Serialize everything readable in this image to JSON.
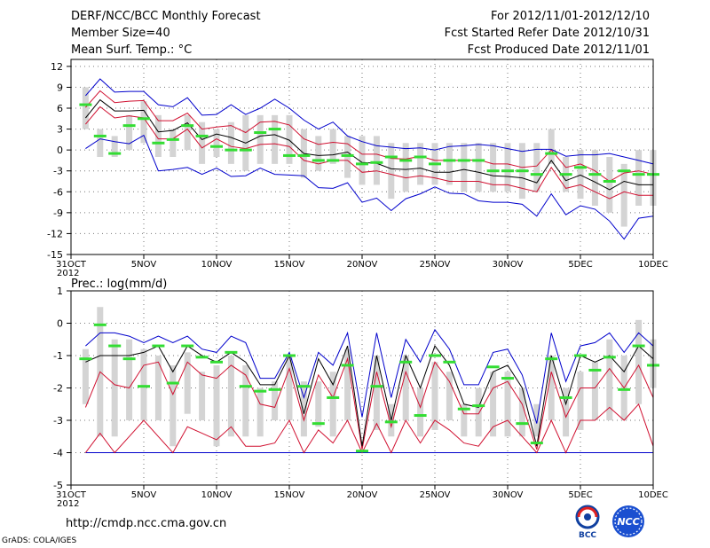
{
  "header": {
    "title": "DERF/NCC/BCC Monthly Forecast",
    "member_size": "Member Size=40",
    "variable": "Mean Surf. Temp.: °C",
    "period": "For 2012/11/01-2012/12/10",
    "started": "Fcst Started Refer Date 2012/10/31",
    "produced": "Fcst Produced Date 2012/11/01"
  },
  "footer": {
    "url": "http://cmdp.ncc.cma.gov.cn",
    "credit": "GrADS: COLA/IGES",
    "logo_left_text": "BCC",
    "logo_right_text": "NCC"
  },
  "colors": {
    "ensemble_mean": "#000000",
    "spread_inner": "#d01030",
    "spread_outer": "#0000cc",
    "box": "#d4d4d4",
    "climatology": "#33dd33"
  },
  "chart_data": [
    {
      "type": "line",
      "id": "temperature",
      "title": "Mean Surf. Temp.: °C",
      "xlabel": "",
      "ylabel": "°C",
      "x_tick_labels": [
        "31OCT",
        "5NOV",
        "10NOV",
        "15NOV",
        "20NOV",
        "25NOV",
        "30NOV",
        "5DEC",
        "10DEC"
      ],
      "x_year": "2012",
      "x_tick_days": [
        0,
        5,
        10,
        15,
        20,
        25,
        30,
        35,
        40
      ],
      "xlim": [
        0,
        40
      ],
      "ylim": [
        -15,
        13
      ],
      "y_ticks": [
        12,
        9,
        6,
        3,
        0,
        -3,
        -6,
        -9,
        -12,
        -15
      ],
      "grid": true,
      "days": [
        1,
        2,
        3,
        4,
        5,
        6,
        7,
        8,
        9,
        10,
        11,
        12,
        13,
        14,
        15,
        16,
        17,
        18,
        19,
        20,
        21,
        22,
        23,
        24,
        25,
        26,
        27,
        28,
        29,
        30,
        31,
        32,
        33,
        34,
        35,
        36,
        37,
        38,
        39,
        40
      ],
      "series": [
        {
          "name": "max",
          "values": [
            7.8,
            10.2,
            8.3,
            8.4,
            8.4,
            6.5,
            6.2,
            7.5,
            5.0,
            5.1,
            6.5,
            5.1,
            6.0,
            7.3,
            6.0,
            4.3,
            3.0,
            4.0,
            2.0,
            1.2,
            0.6,
            0.4,
            0.2,
            0.3,
            0.0,
            0.5,
            0.6,
            0.8,
            0.6,
            0.2,
            -0.2,
            0.1,
            0.1,
            -0.9,
            -0.7,
            -0.7,
            -0.5,
            -1.0,
            -1.5,
            -2.0
          ]
        },
        {
          "name": "upper",
          "values": [
            6.1,
            8.5,
            6.8,
            7.0,
            7.1,
            4.2,
            4.2,
            5.3,
            3.0,
            3.3,
            3.5,
            2.5,
            4.0,
            4.1,
            3.6,
            1.6,
            0.8,
            1.1,
            0.9,
            -0.6,
            -0.6,
            -1.2,
            -1.3,
            -0.9,
            -1.5,
            -1.5,
            -1.5,
            -1.4,
            -2.0,
            -2.0,
            -2.5,
            -2.3,
            0.0,
            -2.5,
            -2.0,
            -3.0,
            -4.5,
            -3.3,
            -3.0,
            -3.5
          ]
        },
        {
          "name": "mean",
          "values": [
            4.6,
            7.2,
            5.6,
            5.6,
            5.7,
            2.6,
            2.8,
            3.9,
            1.5,
            2.3,
            1.8,
            1.0,
            2.0,
            2.2,
            1.4,
            -0.5,
            -0.8,
            -0.7,
            -0.3,
            -1.8,
            -1.9,
            -2.7,
            -2.8,
            -2.6,
            -3.2,
            -3.2,
            -2.8,
            -3.2,
            -3.7,
            -3.8,
            -4.0,
            -4.7,
            -1.5,
            -4.4,
            -3.6,
            -4.6,
            -5.7,
            -4.5,
            -5.0,
            -5.0
          ]
        },
        {
          "name": "lower",
          "values": [
            3.7,
            6.2,
            4.6,
            4.9,
            4.6,
            1.6,
            1.6,
            3.0,
            0.3,
            1.6,
            0.5,
            0.2,
            0.8,
            0.9,
            0.5,
            -1.5,
            -2.0,
            -1.5,
            -1.5,
            -3.2,
            -3.0,
            -3.5,
            -4.0,
            -3.7,
            -4.0,
            -4.5,
            -4.5,
            -4.5,
            -5.0,
            -5.0,
            -5.5,
            -6.0,
            -2.5,
            -5.5,
            -5.0,
            -6.0,
            -7.0,
            -6.0,
            -6.5,
            -6.5
          ]
        },
        {
          "name": "min",
          "values": [
            0.2,
            1.6,
            1.2,
            0.9,
            2.1,
            -3.0,
            -2.8,
            -2.5,
            -3.5,
            -2.6,
            -3.8,
            -3.7,
            -2.6,
            -3.5,
            -3.6,
            -3.7,
            -5.4,
            -5.5,
            -4.7,
            -7.5,
            -6.9,
            -8.7,
            -7.0,
            -6.3,
            -5.3,
            -6.2,
            -6.3,
            -7.3,
            -7.5,
            -7.5,
            -7.8,
            -9.5,
            -6.3,
            -9.3,
            -8.0,
            -8.5,
            -10.2,
            -12.8,
            -9.8,
            -9.5
          ]
        },
        {
          "name": "box_top",
          "values": [
            9.0,
            3.0,
            2.0,
            5.0,
            7.0,
            5.0,
            3.0,
            5.0,
            4.0,
            3.0,
            4.0,
            5.0,
            5.0,
            5.0,
            5.0,
            3.0,
            2.0,
            3.0,
            2.0,
            2.0,
            2.0,
            1.0,
            1.0,
            1.0,
            1.0,
            1.0,
            1.0,
            1.0,
            1.0,
            1.0,
            1.0,
            1.0,
            3.0,
            -1.0,
            0.0,
            0.0,
            -1.0,
            -2.0,
            0.0,
            0.0
          ]
        },
        {
          "name": "box_bottom",
          "values": [
            3.0,
            -1.0,
            -1.0,
            0.0,
            1.0,
            -1.0,
            -1.0,
            0.0,
            -2.0,
            -1.0,
            -2.0,
            -3.0,
            -2.0,
            -2.0,
            -2.0,
            -4.0,
            -3.0,
            -2.0,
            -4.0,
            -5.0,
            -5.0,
            -7.0,
            -6.0,
            -5.0,
            -5.0,
            -5.0,
            -6.0,
            -6.0,
            -6.0,
            -6.0,
            -7.0,
            -6.0,
            -2.0,
            -6.0,
            -7.0,
            -8.0,
            -9.0,
            -11.0,
            -8.0,
            -8.0
          ]
        },
        {
          "name": "climatology",
          "values": [
            6.5,
            2.0,
            -0.5,
            3.5,
            4.5,
            1.0,
            1.5,
            3.5,
            2.0,
            0.5,
            0.0,
            0.0,
            2.5,
            3.0,
            -0.8,
            -0.8,
            -1.5,
            -1.5,
            -0.8,
            -2.0,
            -1.8,
            -1.0,
            -1.5,
            -1.0,
            -2.0,
            -1.5,
            -1.5,
            -1.5,
            -3.0,
            -3.0,
            -3.0,
            -3.5,
            -0.5,
            -3.5,
            -2.5,
            -3.5,
            -4.5,
            -3.0,
            -3.5,
            -3.5
          ]
        }
      ]
    },
    {
      "type": "line",
      "id": "precipitation",
      "title": "Prec.: log(mm/d)",
      "xlabel": "",
      "ylabel": "log(mm/d)",
      "x_tick_labels": [
        "31OCT",
        "5NOV",
        "10NOV",
        "15NOV",
        "20NOV",
        "25NOV",
        "30NOV",
        "5DEC",
        "10DEC"
      ],
      "x_year": "2012",
      "x_tick_days": [
        0,
        5,
        10,
        15,
        20,
        25,
        30,
        35,
        40
      ],
      "xlim": [
        0,
        40
      ],
      "ylim": [
        -5,
        1
      ],
      "y_ticks": [
        1,
        0,
        -1,
        -2,
        -3,
        -4,
        -5
      ],
      "grid": true,
      "days": [
        1,
        2,
        3,
        4,
        5,
        6,
        7,
        8,
        9,
        10,
        11,
        12,
        13,
        14,
        15,
        16,
        17,
        18,
        19,
        20,
        21,
        22,
        23,
        24,
        25,
        26,
        27,
        28,
        29,
        30,
        31,
        32,
        33,
        34,
        35,
        36,
        37,
        38,
        39,
        40
      ],
      "series": [
        {
          "name": "max",
          "values": [
            -0.7,
            -0.3,
            -0.3,
            -0.4,
            -0.6,
            -0.4,
            -0.6,
            -0.4,
            -0.8,
            -0.9,
            -0.4,
            -0.6,
            -1.7,
            -1.7,
            -0.9,
            -2.3,
            -0.9,
            -1.3,
            -0.3,
            -2.9,
            -0.3,
            -2.3,
            -0.5,
            -1.2,
            -0.2,
            -0.8,
            -1.9,
            -1.9,
            -0.9,
            -0.8,
            -1.6,
            -3.1,
            -0.3,
            -1.8,
            -0.7,
            -0.6,
            -0.3,
            -0.9,
            -0.3,
            -0.7
          ]
        },
        {
          "name": "mean",
          "values": [
            -1.2,
            -1.0,
            -1.0,
            -1.0,
            -0.9,
            -0.7,
            -1.5,
            -0.7,
            -1.0,
            -1.2,
            -0.9,
            -1.2,
            -1.9,
            -1.9,
            -1.0,
            -2.8,
            -1.1,
            -1.9,
            -0.7,
            -3.8,
            -1.0,
            -3.0,
            -1.0,
            -2.0,
            -0.7,
            -1.3,
            -2.5,
            -2.6,
            -1.5,
            -1.3,
            -2.0,
            -3.8,
            -1.0,
            -2.5,
            -1.0,
            -1.2,
            -1.0,
            -1.5,
            -0.7,
            -1.1
          ]
        },
        {
          "name": "upper",
          "values": [
            -2.6,
            -1.5,
            -1.9,
            -2.0,
            -1.3,
            -1.2,
            -2.2,
            -1.2,
            -1.6,
            -1.7,
            -1.3,
            -1.6,
            -2.5,
            -2.6,
            -1.4,
            -3.0,
            -1.6,
            -2.3,
            -1.1,
            -3.9,
            -1.5,
            -3.2,
            -1.5,
            -2.6,
            -1.2,
            -1.8,
            -2.8,
            -2.8,
            -2.0,
            -1.8,
            -2.5,
            -3.9,
            -1.5,
            -2.9,
            -2.0,
            -2.0,
            -1.4,
            -2.0,
            -1.3,
            -2.3
          ]
        },
        {
          "name": "lower",
          "values": [
            -4.0,
            -3.4,
            -4.0,
            -3.5,
            -3.0,
            -3.5,
            -4.0,
            -3.2,
            -3.4,
            -3.6,
            -3.2,
            -3.8,
            -3.8,
            -3.7,
            -3.0,
            -4.0,
            -3.3,
            -3.7,
            -3.0,
            -4.0,
            -3.1,
            -4.0,
            -3.0,
            -3.7,
            -3.0,
            -3.3,
            -3.7,
            -3.8,
            -3.2,
            -3.0,
            -3.5,
            -4.0,
            -3.0,
            -4.0,
            -3.0,
            -3.0,
            -2.6,
            -3.0,
            -2.5,
            -3.8
          ]
        },
        {
          "name": "min",
          "values": [
            -4.0,
            -4.0,
            -4.0,
            -4.0,
            -4.0,
            -4.0,
            -4.0,
            -4.0,
            -4.0,
            -4.0,
            -4.0,
            -4.0,
            -4.0,
            -4.0,
            -4.0,
            -4.0,
            -4.0,
            -4.0,
            -4.0,
            -4.0,
            -4.0,
            -4.0,
            -4.0,
            -4.0,
            -4.0,
            -4.0,
            -4.0,
            -4.0,
            -4.0,
            -4.0,
            -4.0,
            -4.0,
            -4.0,
            -4.0,
            -4.0,
            -4.0,
            -4.0,
            -4.0,
            -4.0,
            -4.0
          ]
        },
        {
          "name": "box_top",
          "values": [
            -0.8,
            0.5,
            -0.5,
            -0.5,
            -0.8,
            -1.0,
            -1.3,
            -0.9,
            -1.5,
            -1.3,
            -1.0,
            -1.3,
            -2.0,
            -1.8,
            -1.0,
            -1.8,
            -1.8,
            -1.5,
            -0.8,
            -3.0,
            -1.0,
            -2.5,
            -1.0,
            -2.0,
            -1.2,
            -1.5,
            -2.5,
            -2.0,
            -1.5,
            -1.5,
            -2.0,
            -2.5,
            -1.0,
            -2.0,
            -1.5,
            -1.2,
            -0.5,
            -1.0,
            0.1,
            -0.5
          ]
        },
        {
          "name": "box_bottom",
          "values": [
            -2.5,
            -3.5,
            -3.5,
            -3.0,
            -3.0,
            -3.0,
            -3.8,
            -2.8,
            -3.0,
            -3.8,
            -3.5,
            -3.5,
            -3.5,
            -3.0,
            -3.0,
            -3.5,
            -3.2,
            -3.5,
            -3.0,
            -3.0,
            -3.3,
            -3.5,
            -3.0,
            -3.5,
            -3.3,
            -3.0,
            -3.5,
            -3.5,
            -3.5,
            -3.5,
            -3.5,
            -3.5,
            -3.0,
            -3.5,
            -3.3,
            -3.0,
            -3.0,
            -3.0,
            -2.5,
            -2.0
          ]
        },
        {
          "name": "climatology",
          "values": [
            -1.1,
            -0.05,
            -0.7,
            -1.1,
            -1.95,
            -0.7,
            -1.85,
            -0.7,
            -1.05,
            -1.2,
            -0.9,
            -1.95,
            -2.1,
            -2.05,
            -1.0,
            -1.95,
            -3.1,
            -2.3,
            -1.3,
            -3.95,
            -1.95,
            -3.05,
            -1.2,
            -2.85,
            -1.0,
            -1.2,
            -2.65,
            -2.55,
            -1.35,
            -1.7,
            -3.1,
            -3.7,
            -1.1,
            -2.3,
            -1.0,
            -1.45,
            -1.05,
            -2.05,
            -0.7,
            -1.3
          ]
        }
      ]
    }
  ]
}
